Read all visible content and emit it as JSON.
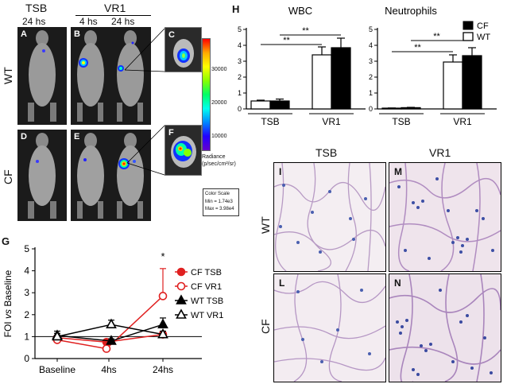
{
  "panel_letters": {
    "A": "A",
    "B": "B",
    "C": "C",
    "D": "D",
    "E": "E",
    "F": "F",
    "G": "G",
    "H": "H",
    "I": "I",
    "L": "L",
    "M": "M",
    "N": "N"
  },
  "imaging": {
    "col_tsb": "TSB",
    "col_vr1": "VR1",
    "t_24_left": "24 hs",
    "t_4": "4 hs",
    "t_24": "24 hs",
    "row_wt": "WT",
    "row_cf": "CF",
    "colorbar": {
      "ticks": [
        "30000",
        "20000",
        "10000"
      ],
      "label_line1": "Radiance",
      "label_line2": "(p/sec/cm²/sr)",
      "scale_title": "Color Scale",
      "scale_min": "Min = 1.74e3",
      "scale_max": "Max = 3.98e4"
    }
  },
  "histology": {
    "col_tsb": "TSB",
    "col_vr1": "VR1",
    "row_wt": "WT",
    "row_cf": "CF"
  },
  "chart_data": [
    {
      "id": "H-WBC",
      "type": "bar",
      "title": "WBC",
      "categories": [
        "TSB",
        "VR1"
      ],
      "series": [
        {
          "name": "WT",
          "values": [
            0.5,
            3.4
          ],
          "errors": [
            0.05,
            0.5
          ],
          "color": "#ffffff"
        },
        {
          "name": "CF",
          "values": [
            0.5,
            3.85
          ],
          "errors": [
            0.12,
            0.6
          ],
          "color": "#000000"
        }
      ],
      "ylim": [
        0,
        5
      ],
      "yticks": [
        "0",
        "1",
        "2",
        "3",
        "4",
        "5"
      ],
      "significance": [
        "**",
        "**"
      ]
    },
    {
      "id": "H-Neutrophils",
      "type": "bar",
      "title": "Neutrophils",
      "categories": [
        "TSB",
        "VR1"
      ],
      "series": [
        {
          "name": "WT",
          "values": [
            0.05,
            2.95
          ],
          "errors": [
            0.01,
            0.45
          ],
          "color": "#ffffff"
        },
        {
          "name": "CF",
          "values": [
            0.08,
            3.35
          ],
          "errors": [
            0.02,
            0.5
          ],
          "color": "#000000"
        }
      ],
      "ylim": [
        0,
        5
      ],
      "yticks": [
        "0",
        "1",
        "2",
        "3",
        "4",
        "5"
      ],
      "significance": [
        "**",
        "**"
      ],
      "legend": [
        "CF",
        "WT"
      ]
    },
    {
      "id": "G",
      "type": "line",
      "ylabel_parts": [
        "FOI ",
        "vs",
        " Baseline"
      ],
      "categories": [
        "Baseline",
        "4hs",
        "24hs"
      ],
      "ylim": [
        0,
        5
      ],
      "yticks": [
        "0",
        "1",
        "2",
        "3",
        "4",
        "5"
      ],
      "significance": "*",
      "series": [
        {
          "name": "CF TSB",
          "values": [
            0.95,
            0.75,
            1.1
          ],
          "errors": [
            0.1,
            0.1,
            0.1
          ],
          "color": "#e02020",
          "marker": "circle-filled"
        },
        {
          "name": "CF VR1",
          "values": [
            0.85,
            0.45,
            2.85
          ],
          "errors": [
            0.1,
            0.1,
            1.25
          ],
          "color": "#e02020",
          "marker": "circle-open"
        },
        {
          "name": "WT TSB",
          "values": [
            1.05,
            0.8,
            1.55
          ],
          "errors": [
            0.2,
            0.1,
            0.3
          ],
          "color": "#000000",
          "marker": "triangle-filled"
        },
        {
          "name": "WT VR1",
          "values": [
            1.0,
            1.55,
            1.1
          ],
          "errors": [
            0.15,
            0.2,
            0.15
          ],
          "color": "#000000",
          "marker": "triangle-open"
        }
      ]
    }
  ]
}
